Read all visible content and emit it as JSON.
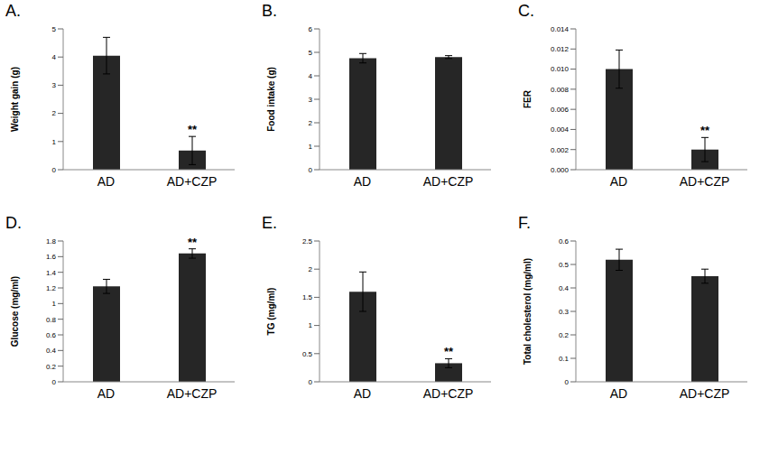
{
  "chart_data": [
    {
      "type": "bar",
      "title": "A.",
      "y_label": "Weight gain (g)",
      "categories": [
        "AD",
        "AD+CZP"
      ],
      "values": [
        4.05,
        0.68
      ],
      "errors": [
        0.65,
        0.5
      ],
      "color": "#262626",
      "ylim": [
        0,
        5
      ],
      "yticks": [
        0,
        1,
        2,
        3,
        4,
        5
      ],
      "grid": false,
      "annotations": [
        {
          "category": "AD+CZP",
          "text": "**"
        }
      ]
    },
    {
      "type": "bar",
      "title": "B.",
      "y_label": "Food intake (g)",
      "categories": [
        "AD",
        "AD+CZP"
      ],
      "values": [
        4.75,
        4.8
      ],
      "errors": [
        0.2,
        0.06
      ],
      "color": "#262626",
      "ylim": [
        0,
        6
      ],
      "yticks": [
        0,
        1,
        2,
        3,
        4,
        5,
        6
      ],
      "grid": false,
      "annotations": []
    },
    {
      "type": "bar",
      "title": "C.",
      "y_label": "FER",
      "categories": [
        "AD",
        "AD+CZP"
      ],
      "values": [
        0.01,
        0.002
      ],
      "errors": [
        0.0019,
        0.0012
      ],
      "color": "#262626",
      "ylim": [
        0,
        0.014
      ],
      "yticks": [
        {
          "value": 0,
          "label": "0.000"
        },
        {
          "value": 0.002,
          "label": "0.002"
        },
        {
          "value": 0.004,
          "label": "0.004"
        },
        {
          "value": 0.006,
          "label": "0.006"
        },
        {
          "value": 0.008,
          "label": "0.008"
        },
        {
          "value": 0.01,
          "label": "0.010"
        },
        {
          "value": 0.012,
          "label": "0.012"
        },
        {
          "value": 0.014,
          "label": "0.014"
        }
      ],
      "grid": false,
      "annotations": [
        {
          "category": "AD+CZP",
          "text": "**"
        }
      ]
    },
    {
      "type": "bar",
      "title": "D.",
      "y_label": "Glucose (mg/ml)",
      "categories": [
        "AD",
        "AD+CZP"
      ],
      "values": [
        1.22,
        1.64
      ],
      "errors": [
        0.09,
        0.06
      ],
      "color": "#262626",
      "ylim": [
        0,
        1.8
      ],
      "yticks": [
        0,
        0.2,
        0.4,
        0.6,
        0.8,
        1,
        1.2,
        1.4,
        1.6,
        1.8
      ],
      "grid": false,
      "annotations": [
        {
          "category": "AD+CZP",
          "text": "**"
        }
      ]
    },
    {
      "type": "bar",
      "title": "E.",
      "y_label": "TG (mg/ml)",
      "categories": [
        "AD",
        "AD+CZP"
      ],
      "values": [
        1.6,
        0.33
      ],
      "errors": [
        0.35,
        0.08
      ],
      "color": "#262626",
      "ylim": [
        0,
        2.5
      ],
      "yticks": [
        0,
        0.5,
        1,
        1.5,
        2,
        2.5
      ],
      "grid": false,
      "annotations": [
        {
          "category": "AD+CZP",
          "text": "**"
        }
      ]
    },
    {
      "type": "bar",
      "title": "F.",
      "y_label": "Total cholesterol (mg/ml)",
      "categories": [
        "AD",
        "AD+CZP"
      ],
      "values": [
        0.52,
        0.45
      ],
      "errors": [
        0.045,
        0.03
      ],
      "color": "#262626",
      "ylim": [
        0,
        0.6
      ],
      "yticks": [
        0,
        0.1,
        0.2,
        0.3,
        0.4,
        0.5,
        0.6
      ],
      "grid": false,
      "annotations": []
    }
  ]
}
